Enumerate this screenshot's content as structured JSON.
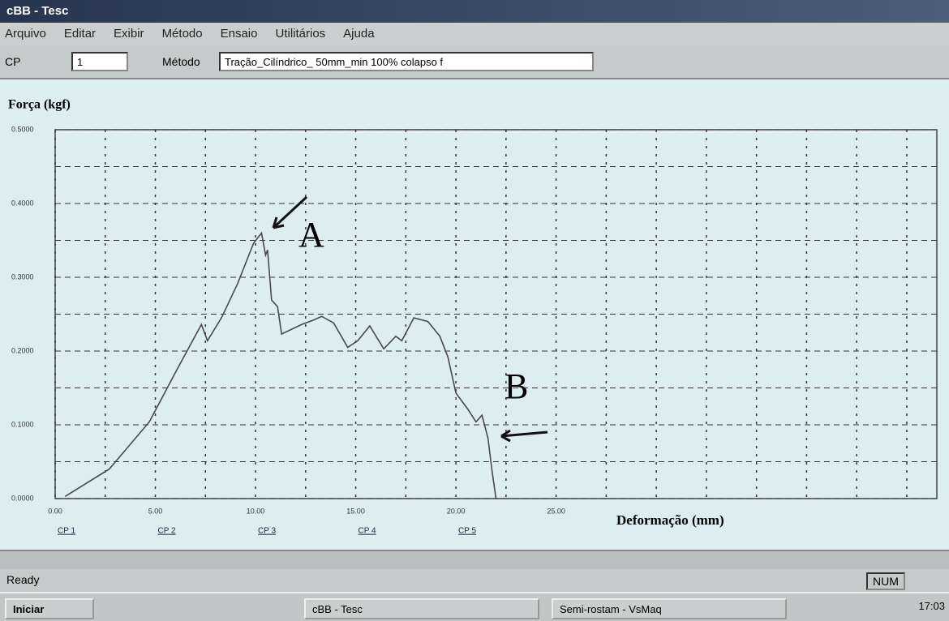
{
  "window": {
    "title": "cBB - Tesc",
    "menu": [
      "Arquivo",
      "Editar",
      "Exibir",
      "Método",
      "Ensaio",
      "Utilitários",
      "Ajuda"
    ],
    "toolbar": {
      "cp_label": "CP",
      "cp_value": "1",
      "method_label": "Método",
      "method_value": "Tração_Cilíndrico_ 50mm_min 100% colapso f"
    },
    "status": {
      "text": "Ready",
      "num": "NUM"
    },
    "taskbar": {
      "start": "Iniciar",
      "task1": "cBB - Tesc",
      "task2": "Semi-rostam - VsMaq",
      "clock": "17:03"
    }
  },
  "chart_data": {
    "type": "line",
    "ylabel": "Força (kgf)",
    "xlabel": "Deformação (mm)",
    "x": [
      0.5,
      2.7,
      4.7,
      6.1,
      7.3,
      7.6,
      8.3,
      9.1,
      9.9,
      10.3,
      10.5,
      10.6,
      10.8,
      11.1,
      11.3,
      12.3,
      12.9,
      13.3,
      13.9,
      14.6,
      15.1,
      15.7,
      16.4,
      17.0,
      17.3,
      17.9,
      18.6,
      19.2,
      19.6,
      20.0,
      20.6,
      21.0,
      21.3,
      21.6,
      21.8,
      22.0
    ],
    "values": [
      0.003,
      0.04,
      0.104,
      0.176,
      0.236,
      0.214,
      0.245,
      0.291,
      0.346,
      0.36,
      0.33,
      0.337,
      0.269,
      0.26,
      0.223,
      0.236,
      0.242,
      0.247,
      0.238,
      0.205,
      0.214,
      0.234,
      0.203,
      0.22,
      0.214,
      0.245,
      0.24,
      0.22,
      0.192,
      0.143,
      0.121,
      0.104,
      0.113,
      0.082,
      0.038,
      0.0
    ],
    "color": "#4a4a4a",
    "xlim": [
      0,
      44
    ],
    "ylim": [
      0,
      0.5
    ],
    "xticks": [
      {
        "value": 0,
        "label": "0.00"
      },
      {
        "value": 5,
        "label": "5.00"
      },
      {
        "value": 10,
        "label": "10.00"
      },
      {
        "value": 15,
        "label": "15.00"
      },
      {
        "value": 20,
        "label": "20.00"
      },
      {
        "value": 25,
        "label": "25.00"
      }
    ],
    "yticks": [
      {
        "value": 0,
        "label": "0.0000"
      },
      {
        "value": 0.1,
        "label": "0.1000"
      },
      {
        "value": 0.2,
        "label": "0.2000"
      },
      {
        "value": 0.3,
        "label": "0.3000"
      },
      {
        "value": 0.4,
        "label": "0.4000"
      },
      {
        "value": 0.5,
        "label": "0.5000"
      }
    ],
    "minor_xticks": [
      2.5,
      7.5,
      12.5,
      17.5,
      22.5,
      27.5,
      30,
      32.5,
      35,
      37.5,
      40,
      42.5
    ],
    "minor_yticks": [
      0.05,
      0.15,
      0.25,
      0.35,
      0.45
    ],
    "grid": true,
    "cp_labels": [
      "CP 1",
      "CP 2",
      "CP 3",
      "CP 4",
      "CP 5"
    ],
    "annotations": [
      "A",
      "B"
    ]
  }
}
